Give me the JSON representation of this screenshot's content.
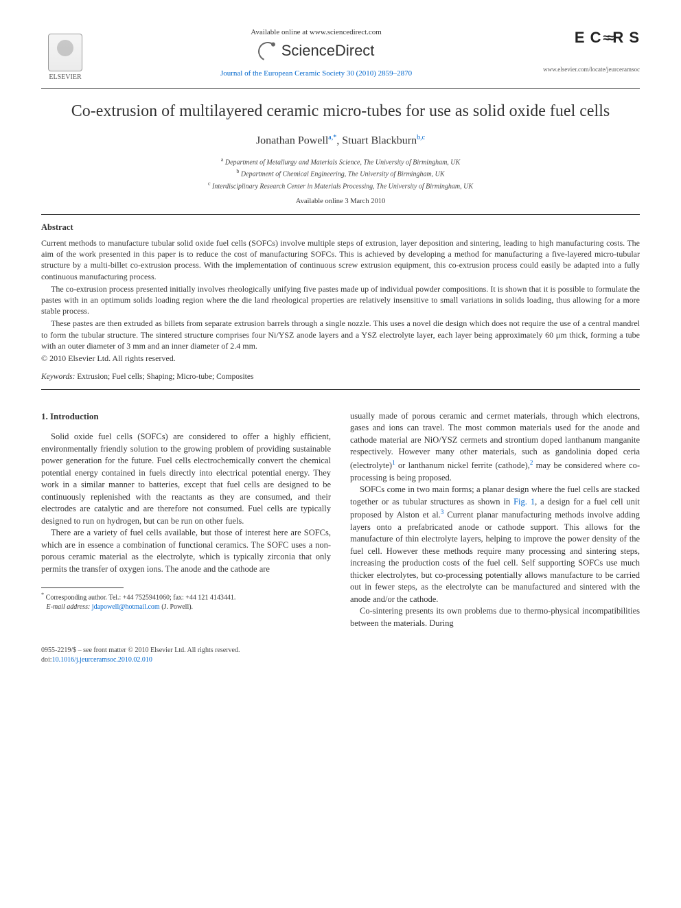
{
  "header": {
    "elsevier_label": "ELSEVIER",
    "available_online": "Available online at www.sciencedirect.com",
    "sciencedirect": "ScienceDirect",
    "journal_ref": "Journal of the European Ceramic Society 30 (2010) 2859–2870",
    "ecers_logo_left": "E C",
    "ecers_logo_right": "R S",
    "journal_url": "www.elsevier.com/locate/jeurceramsoc"
  },
  "title": "Co-extrusion of multilayered ceramic micro-tubes for use as solid oxide fuel cells",
  "authors": {
    "a1_name": "Jonathan Powell",
    "a1_sup": "a,",
    "a1_star": "*",
    "a2_name": "Stuart Blackburn",
    "a2_sup": "b,c"
  },
  "affiliations": {
    "a": "Department of Metallurgy and Materials Science, The University of Birmingham, UK",
    "b": "Department of Chemical Engineering, The University of Birmingham, UK",
    "c": "Interdisciplinary Research Center in Materials Processing, The University of Birmingham, UK"
  },
  "available_date": "Available online 3 March 2010",
  "abstract_heading": "Abstract",
  "abstract": {
    "p1": "Current methods to manufacture tubular solid oxide fuel cells (SOFCs) involve multiple steps of extrusion, layer deposition and sintering, leading to high manufacturing costs. The aim of the work presented in this paper is to reduce the cost of manufacturing SOFCs. This is achieved by developing a method for manufacturing a five-layered micro-tubular structure by a multi-billet co-extrusion process. With the implementation of continuous screw extrusion equipment, this co-extrusion process could easily be adapted into a fully continuous manufacturing process.",
    "p2": "The co-extrusion process presented initially involves rheologically unifying five pastes made up of individual powder compositions. It is shown that it is possible to formulate the pastes with in an optimum solids loading region where the die land rheological properties are relatively insensitive to small variations in solids loading, thus allowing for a more stable process.",
    "p3": "These pastes are then extruded as billets from separate extrusion barrels through a single nozzle. This uses a novel die design which does not require the use of a central mandrel to form the tubular structure. The sintered structure comprises four Ni/YSZ anode layers and a YSZ electrolyte layer, each layer being approximately 60 μm thick, forming a tube with an outer diameter of 3 mm and an inner diameter of 2.4 mm."
  },
  "copyright": "© 2010 Elsevier Ltd. All rights reserved.",
  "keywords": {
    "label": "Keywords:",
    "text": "Extrusion; Fuel cells; Shaping; Micro-tube; Composites"
  },
  "section1_heading": "1.  Introduction",
  "body": {
    "left_p1": "Solid oxide fuel cells (SOFCs) are considered to offer a highly efficient, environmentally friendly solution to the growing problem of providing sustainable power generation for the future. Fuel cells electrochemically convert the chemical potential energy contained in fuels directly into electrical potential energy. They work in a similar manner to batteries, except that fuel cells are designed to be continuously replenished with the reactants as they are consumed, and their electrodes are catalytic and are therefore not consumed. Fuel cells are typically designed to run on hydrogen, but can be run on other fuels.",
    "left_p2": "There are a variety of fuel cells available, but those of interest here are SOFCs, which are in essence a combination of functional ceramics. The SOFC uses a non-porous ceramic material as the electrolyte, which is typically zirconia that only permits the transfer of oxygen ions. The anode and the cathode are",
    "right_p1a": "usually made of porous ceramic and cermet materials, through which electrons, gases and ions can travel. The most common materials used for the anode and cathode material are NiO/YSZ cermets and strontium doped lanthanum manganite respectively. However many other materials, such as gandolinia doped ceria (electrolyte)",
    "right_p1b": " or lanthanum nickel ferrite (cathode),",
    "right_p1c": " may be considered where co-processing is being proposed.",
    "right_p2a": "SOFCs come in two main forms; a planar design where the fuel cells are stacked together or as tubular structures as shown in ",
    "right_p2_fig": "Fig. 1",
    "right_p2b": ", a design for a fuel cell unit proposed by Alston et al.",
    "right_p2c": " Current planar manufacturing methods involve adding layers onto a prefabricated anode or cathode support. This allows for the manufacture of thin electrolyte layers, helping to improve the power density of the fuel cell. However these methods require many processing and sintering steps, increasing the production costs of the fuel cell. Self supporting SOFCs use much thicker electrolytes, but co-processing potentially allows manufacture to be carried out in fewer steps, as the electrolyte can be manufactured and sintered with the anode and/or the cathode.",
    "right_p3": "Co-sintering presents its own problems due to thermo-physical incompatibilities between the materials. During",
    "ref1": "1",
    "ref2": "2",
    "ref3": "3"
  },
  "footnote": {
    "star": "*",
    "corr_label": "Corresponding author. Tel.: +44 7525941060; fax: +44 121 4143441.",
    "email_label": "E-mail address:",
    "email": "jdapowell@hotmail.com",
    "email_name": "(J. Powell)."
  },
  "footer": {
    "issn_line": "0955-2219/$ – see front matter © 2010 Elsevier Ltd. All rights reserved.",
    "doi_label": "doi:",
    "doi": "10.1016/j.jeurceramsoc.2010.02.010"
  },
  "colors": {
    "link": "#0066cc",
    "text": "#333333",
    "rule": "#333333",
    "background": "#ffffff"
  }
}
